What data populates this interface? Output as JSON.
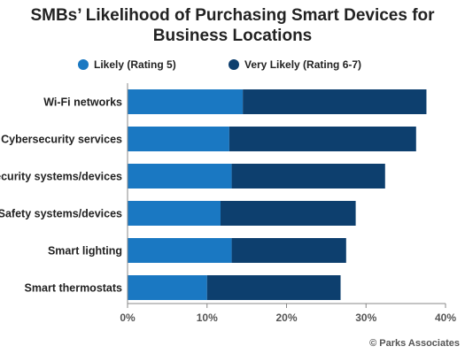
{
  "title_line1": "SMBs’ Likelihood of Purchasing Smart Devices for",
  "title_line2": "Business Locations",
  "source": "© Parks Associates",
  "colors": {
    "likely": "#1a78c2",
    "very_likely": "#0d3f6e",
    "axis": "#888888"
  },
  "chart_data": {
    "type": "bar",
    "orientation": "horizontal",
    "stacked": true,
    "title": "SMBs’ Likelihood of Purchasing Smart Devices for Business Locations",
    "categories": [
      "Wi-Fi networks",
      "Cybersecurity services",
      "Security systems/devices",
      "Safety systems/devices",
      "Smart lighting",
      "Smart thermostats"
    ],
    "series": [
      {
        "name": "Likely (Rating 5)",
        "values": [
          14.5,
          12.8,
          13.1,
          11.7,
          13.1,
          10.0
        ]
      },
      {
        "name": "Very Likely (Rating 6-7)",
        "values": [
          23.1,
          23.5,
          19.3,
          17.0,
          14.4,
          16.8
        ]
      }
    ],
    "xlim": [
      0,
      40
    ],
    "xticks": [
      0,
      10,
      20,
      30,
      40
    ],
    "xtick_labels": [
      "0%",
      "10%",
      "20%",
      "30%",
      "40%"
    ],
    "legend_position": "top",
    "grid": false
  }
}
